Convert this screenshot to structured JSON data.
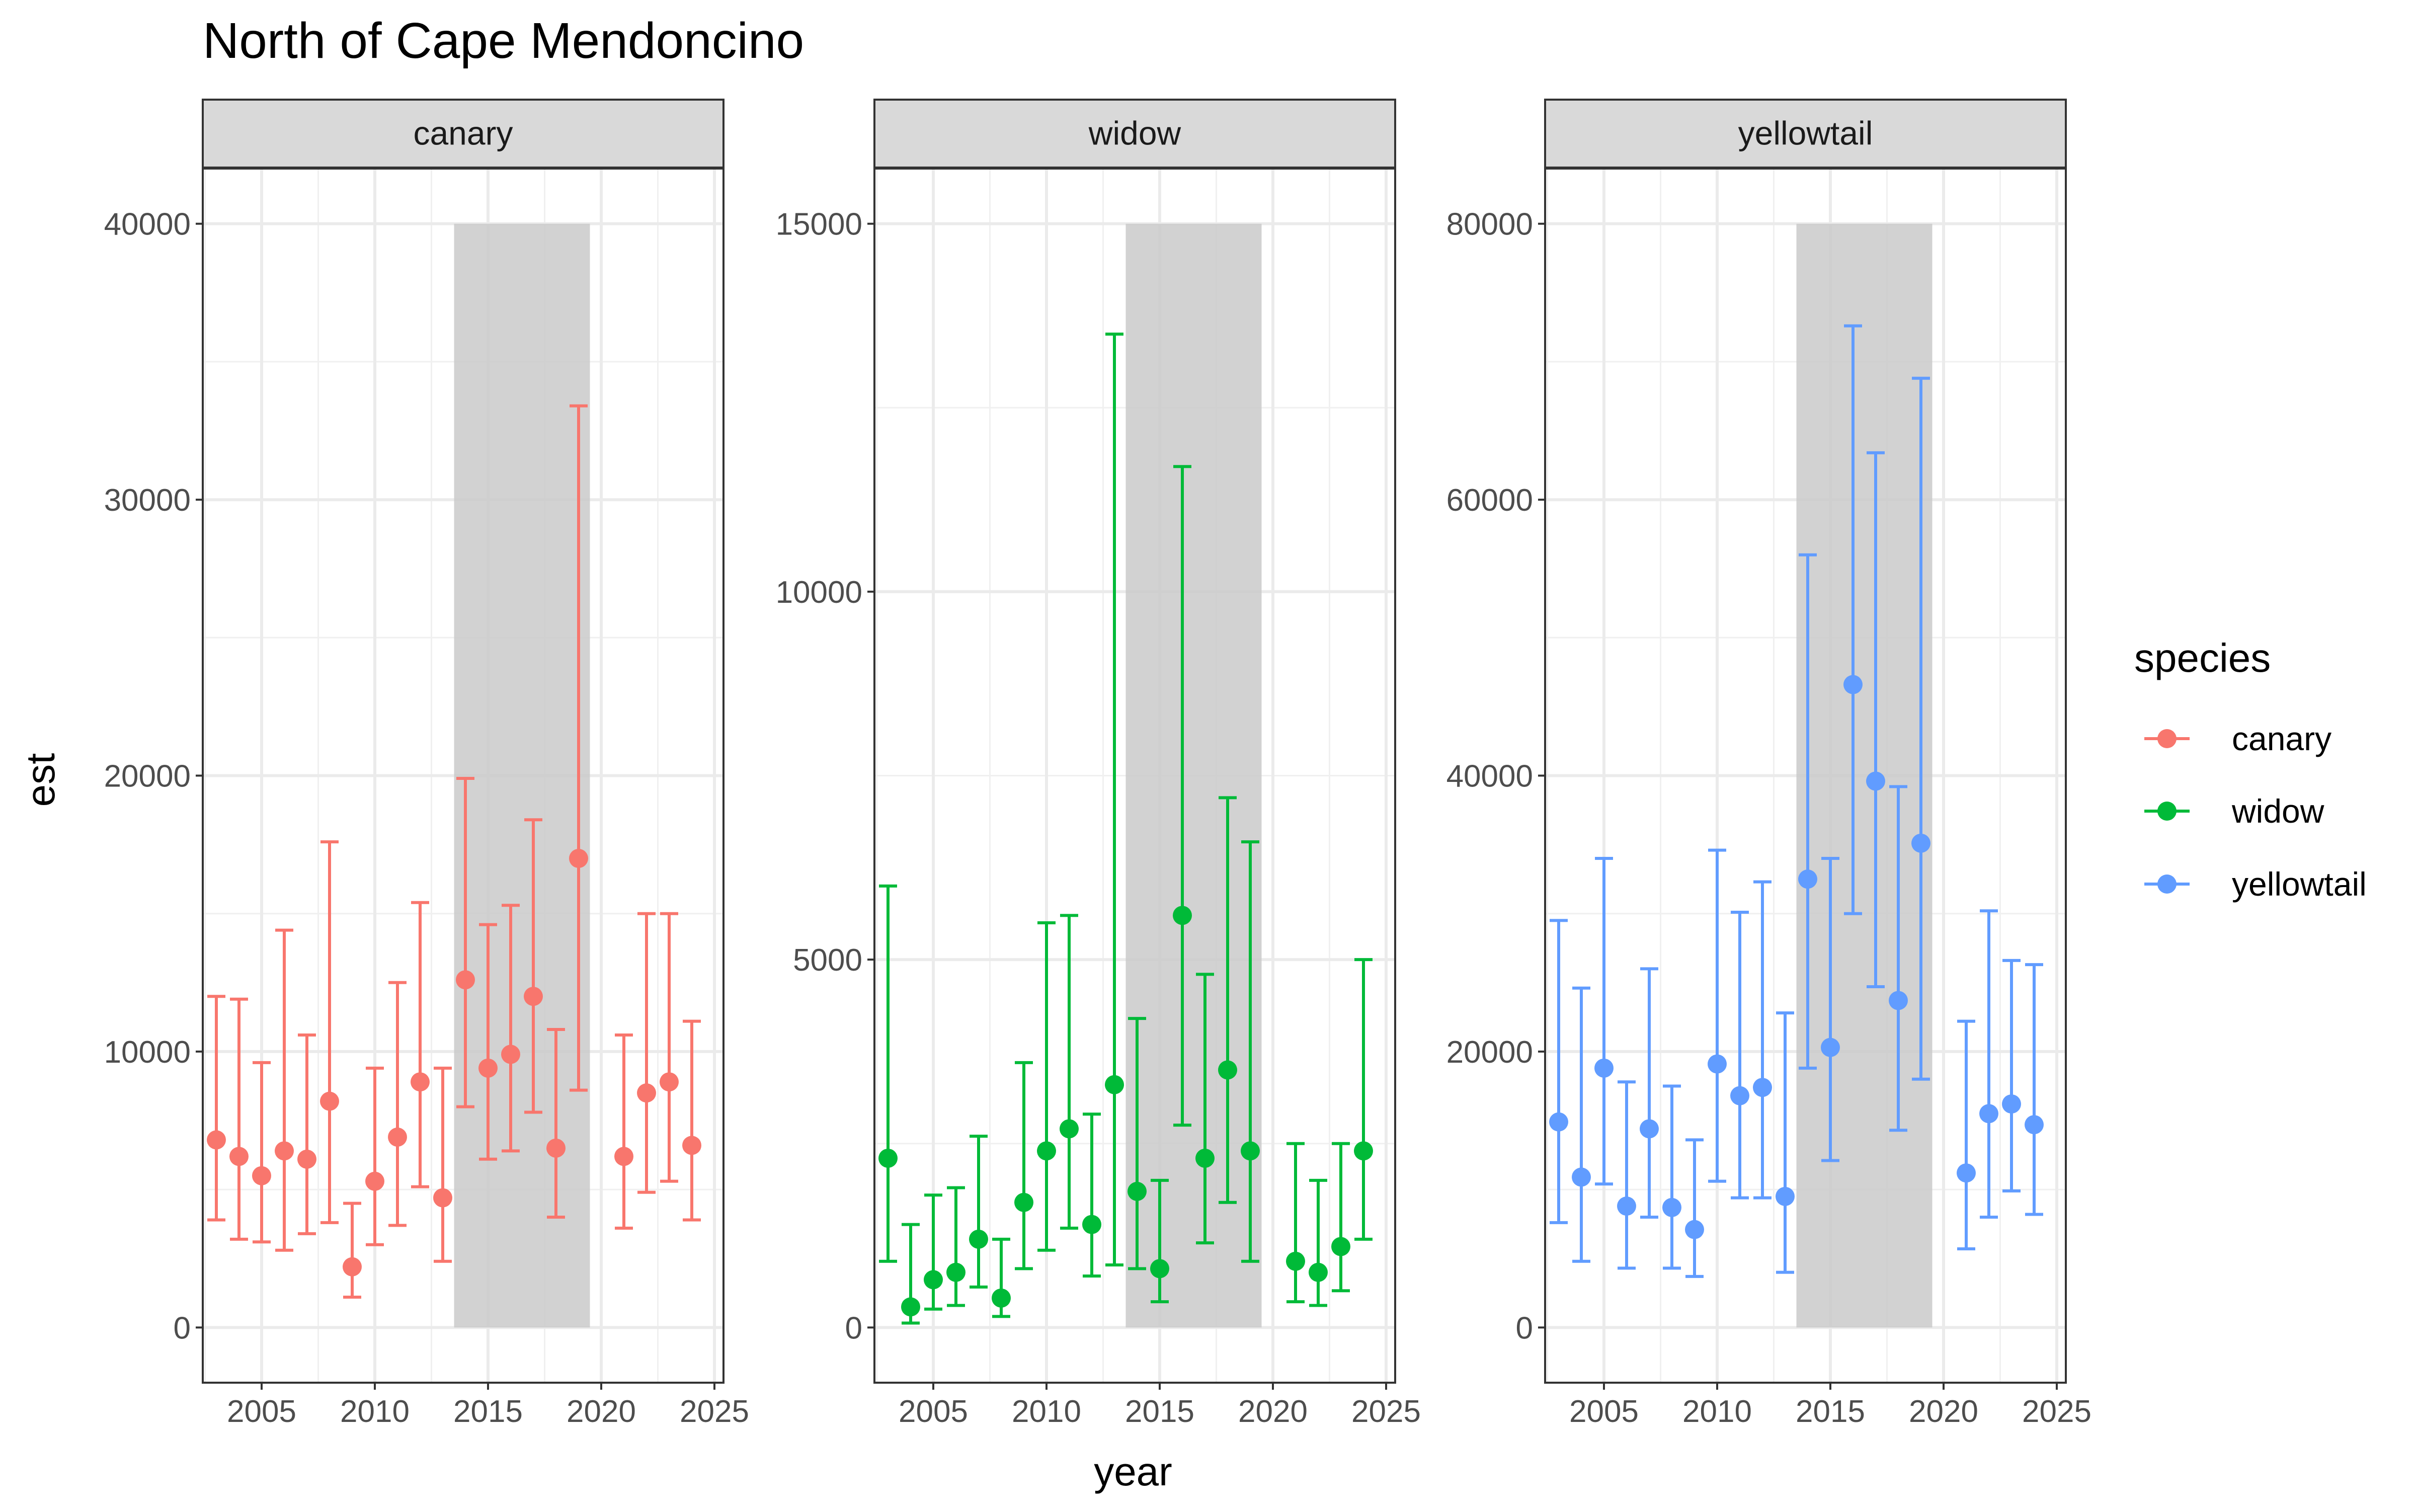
{
  "chart_data": {
    "type": "scatter",
    "title": "North of Cape Mendoncino",
    "xlabel": "year",
    "ylabel": "est",
    "xlim": [
      2002.4,
      2025.4
    ],
    "x_ticks": [
      2005,
      2010,
      2015,
      2020,
      2025
    ],
    "shaded_region": {
      "x_start": 2013.5,
      "x_end": 2019.5
    },
    "legend": {
      "title": "species",
      "placement": "right",
      "entries": [
        "canary",
        "widow",
        "yellowtail"
      ]
    },
    "panels": [
      {
        "name": "canary",
        "color": "#F8766D",
        "ylim": [
          -2000,
          42000
        ],
        "y_ticks": [
          0,
          10000,
          20000,
          30000,
          40000
        ],
        "shade_top": 40000,
        "points": [
          {
            "x": 2003,
            "y": 6800,
            "lo": 3900,
            "hi": 12000
          },
          {
            "x": 2004,
            "y": 6200,
            "lo": 3200,
            "hi": 11900
          },
          {
            "x": 2005,
            "y": 5500,
            "lo": 3100,
            "hi": 9600
          },
          {
            "x": 2006,
            "y": 6400,
            "lo": 2800,
            "hi": 14400
          },
          {
            "x": 2007,
            "y": 6100,
            "lo": 3400,
            "hi": 10600
          },
          {
            "x": 2008,
            "y": 8200,
            "lo": 3800,
            "hi": 17600
          },
          {
            "x": 2009,
            "y": 2200,
            "lo": 1100,
            "hi": 4500
          },
          {
            "x": 2010,
            "y": 5300,
            "lo": 3000,
            "hi": 9400
          },
          {
            "x": 2011,
            "y": 6900,
            "lo": 3700,
            "hi": 12500
          },
          {
            "x": 2012,
            "y": 8900,
            "lo": 5100,
            "hi": 15400
          },
          {
            "x": 2013,
            "y": 4700,
            "lo": 2400,
            "hi": 9400
          },
          {
            "x": 2014,
            "y": 12600,
            "lo": 8000,
            "hi": 19900
          },
          {
            "x": 2015,
            "y": 9400,
            "lo": 6100,
            "hi": 14600
          },
          {
            "x": 2016,
            "y": 9900,
            "lo": 6400,
            "hi": 15300
          },
          {
            "x": 2017,
            "y": 12000,
            "lo": 7800,
            "hi": 18400
          },
          {
            "x": 2018,
            "y": 6500,
            "lo": 4000,
            "hi": 10800
          },
          {
            "x": 2019,
            "y": 17000,
            "lo": 8600,
            "hi": 33400
          },
          {
            "x": 2021,
            "y": 6200,
            "lo": 3600,
            "hi": 10600
          },
          {
            "x": 2022,
            "y": 8500,
            "lo": 4900,
            "hi": 15000
          },
          {
            "x": 2023,
            "y": 8900,
            "lo": 5300,
            "hi": 15000
          },
          {
            "x": 2024,
            "y": 6600,
            "lo": 3900,
            "hi": 11100
          }
        ]
      },
      {
        "name": "widow",
        "color": "#00BA38",
        "ylim": [
          -750,
          15750
        ],
        "y_ticks": [
          0,
          5000,
          10000,
          15000
        ],
        "shade_top": 15000,
        "points": [
          {
            "x": 2003,
            "y": 2300,
            "lo": 900,
            "hi": 6000
          },
          {
            "x": 2004,
            "y": 280,
            "lo": 60,
            "hi": 1400
          },
          {
            "x": 2005,
            "y": 650,
            "lo": 250,
            "hi": 1800
          },
          {
            "x": 2006,
            "y": 750,
            "lo": 300,
            "hi": 1900
          },
          {
            "x": 2007,
            "y": 1200,
            "lo": 550,
            "hi": 2600
          },
          {
            "x": 2008,
            "y": 400,
            "lo": 150,
            "hi": 1200
          },
          {
            "x": 2009,
            "y": 1700,
            "lo": 800,
            "hi": 3600
          },
          {
            "x": 2010,
            "y": 2400,
            "lo": 1050,
            "hi": 5500
          },
          {
            "x": 2011,
            "y": 2700,
            "lo": 1350,
            "hi": 5600
          },
          {
            "x": 2012,
            "y": 1400,
            "lo": 700,
            "hi": 2900
          },
          {
            "x": 2013,
            "y": 3300,
            "lo": 850,
            "hi": 13500
          },
          {
            "x": 2014,
            "y": 1850,
            "lo": 800,
            "hi": 4200
          },
          {
            "x": 2015,
            "y": 800,
            "lo": 350,
            "hi": 2000
          },
          {
            "x": 2016,
            "y": 5600,
            "lo": 2750,
            "hi": 11700
          },
          {
            "x": 2017,
            "y": 2300,
            "lo": 1150,
            "hi": 4800
          },
          {
            "x": 2018,
            "y": 3500,
            "lo": 1700,
            "hi": 7200
          },
          {
            "x": 2019,
            "y": 2400,
            "lo": 900,
            "hi": 6600
          },
          {
            "x": 2021,
            "y": 900,
            "lo": 350,
            "hi": 2500
          },
          {
            "x": 2022,
            "y": 750,
            "lo": 300,
            "hi": 2000
          },
          {
            "x": 2023,
            "y": 1100,
            "lo": 500,
            "hi": 2500
          },
          {
            "x": 2024,
            "y": 2400,
            "lo": 1200,
            "hi": 5000
          }
        ]
      },
      {
        "name": "yellowtail",
        "color": "#619CFF",
        "ylim": [
          -4000,
          84000
        ],
        "y_ticks": [
          0,
          20000,
          40000,
          60000,
          80000
        ],
        "shade_top": 80000,
        "points": [
          {
            "x": 2003,
            "y": 14900,
            "lo": 7600,
            "hi": 29500
          },
          {
            "x": 2004,
            "y": 10900,
            "lo": 4800,
            "hi": 24600
          },
          {
            "x": 2005,
            "y": 18800,
            "lo": 10400,
            "hi": 34000
          },
          {
            "x": 2006,
            "y": 8800,
            "lo": 4300,
            "hi": 17800
          },
          {
            "x": 2007,
            "y": 14400,
            "lo": 8000,
            "hi": 26000
          },
          {
            "x": 2008,
            "y": 8700,
            "lo": 4300,
            "hi": 17500
          },
          {
            "x": 2009,
            "y": 7100,
            "lo": 3700,
            "hi": 13600
          },
          {
            "x": 2010,
            "y": 19100,
            "lo": 10600,
            "hi": 34600
          },
          {
            "x": 2011,
            "y": 16800,
            "lo": 9400,
            "hi": 30100
          },
          {
            "x": 2012,
            "y": 17400,
            "lo": 9400,
            "hi": 32300
          },
          {
            "x": 2013,
            "y": 9500,
            "lo": 4000,
            "hi": 22800
          },
          {
            "x": 2014,
            "y": 32500,
            "lo": 18800,
            "hi": 56000
          },
          {
            "x": 2015,
            "y": 20300,
            "lo": 12100,
            "hi": 34000
          },
          {
            "x": 2016,
            "y": 46600,
            "lo": 30000,
            "hi": 72600
          },
          {
            "x": 2017,
            "y": 39600,
            "lo": 24700,
            "hi": 63400
          },
          {
            "x": 2018,
            "y": 23700,
            "lo": 14300,
            "hi": 39200
          },
          {
            "x": 2019,
            "y": 35100,
            "lo": 18000,
            "hi": 68800
          },
          {
            "x": 2021,
            "y": 11200,
            "lo": 5700,
            "hi": 22200
          },
          {
            "x": 2022,
            "y": 15500,
            "lo": 8000,
            "hi": 30200
          },
          {
            "x": 2023,
            "y": 16200,
            "lo": 9900,
            "hi": 26600
          },
          {
            "x": 2024,
            "y": 14700,
            "lo": 8200,
            "hi": 26300
          }
        ]
      }
    ]
  }
}
